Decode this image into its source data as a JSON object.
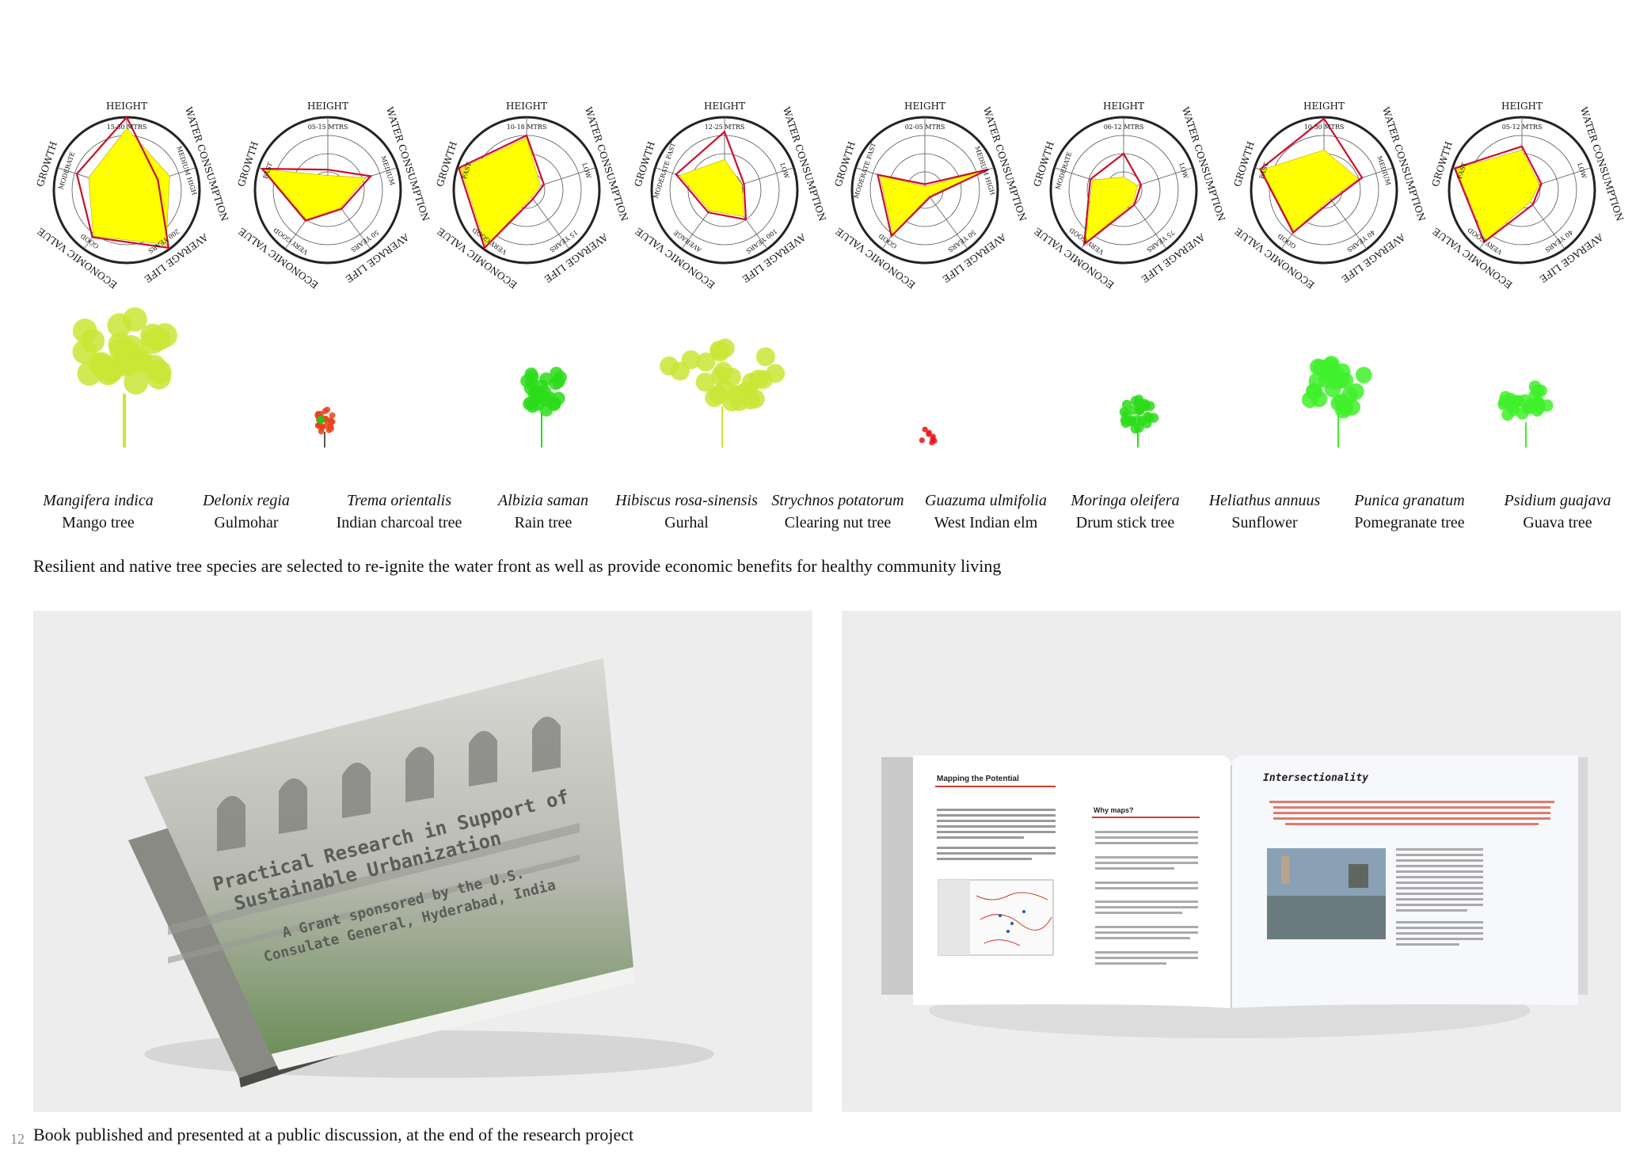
{
  "radar_axes": [
    "HEIGHT",
    "WATER CONSUMPTION",
    "AVERAGE LIFE",
    "ECONOMIC VALUE",
    "GROWTH"
  ],
  "radar_charts": [
    {
      "height": "15-30 MTRS",
      "water": "MEDIUM HIGH",
      "life": "200 YEARS",
      "economic": "GOOD",
      "growth": "MODERATE",
      "levels": [
        0.85,
        0.62,
        0.92,
        0.78,
        0.55
      ],
      "req": [
        1.0,
        0.45,
        0.98,
        0.8,
        0.72
      ]
    },
    {
      "height": "05-15 MTRS",
      "water": "MEDIUM",
      "life": "50 YEARS",
      "economic": "VERY GOOD",
      "growth": "FAST",
      "levels": [
        0.2,
        0.55,
        0.3,
        0.5,
        0.93
      ],
      "req": [
        0.28,
        0.62,
        0.32,
        0.52,
        0.95
      ]
    },
    {
      "height": "10-18 MTRS",
      "water": "LOW",
      "life": "15 YEARS",
      "economic": "VERY GOOD",
      "growth": "FAST",
      "levels": [
        0.72,
        0.2,
        0.12,
        0.95,
        0.95
      ],
      "req": [
        0.75,
        0.25,
        0.15,
        0.98,
        0.98
      ]
    },
    {
      "height": "12-25 MTRS",
      "water": "LOW",
      "life": "100 YEARS",
      "economic": "AVERAGE",
      "growth": "MODERATE FAST",
      "levels": [
        0.42,
        0.25,
        0.45,
        0.35,
        0.65
      ],
      "req": [
        0.8,
        0.28,
        0.5,
        0.38,
        0.7
      ]
    },
    {
      "height": "02-05 MTRS",
      "water": "MEDIUM HIGH",
      "life": "50 YEARS",
      "economic": "GOOD",
      "growth": "MODERATE FAST",
      "levels": [
        0.05,
        0.9,
        0.1,
        0.75,
        0.65
      ],
      "req": [
        0.08,
        0.92,
        0.12,
        0.78,
        0.68
      ]
    },
    {
      "height": "06-12 MTRS",
      "water": "LOW",
      "life": "75 YEARS",
      "economic": "VERY GOOD",
      "growth": "MODERATE",
      "levels": [
        0.18,
        0.2,
        0.22,
        0.9,
        0.45
      ],
      "req": [
        0.5,
        0.25,
        0.25,
        0.92,
        0.48
      ]
    },
    {
      "height": "10-30 MTRS",
      "water": "MEDIUM",
      "life": "40 YEARS",
      "economic": "GOOD",
      "growth": "FAST",
      "levels": [
        0.55,
        0.5,
        0.15,
        0.7,
        0.9
      ],
      "req": [
        0.98,
        0.55,
        0.18,
        0.72,
        0.92
      ]
    },
    {
      "height": "05-12 MTRS",
      "water": "LOW",
      "life": "40 YEARS",
      "economic": "VERY GOOD",
      "growth": "FAST",
      "levels": [
        0.55,
        0.25,
        0.2,
        0.85,
        0.95
      ],
      "req": [
        0.6,
        0.28,
        0.25,
        0.88,
        0.97
      ]
    }
  ],
  "species": [
    {
      "scientific": "Mangifera indica",
      "common": "Mango tree",
      "tree_color": "#c9e635"
    },
    {
      "scientific": "Delonix regia",
      "common": "Gulmohar",
      "tree_color": "#e8431a"
    },
    {
      "scientific": "Trema orientalis",
      "common": "Indian charcoal tree",
      "tree_color": ""
    },
    {
      "scientific": "Albizia saman",
      "common": "Rain tree",
      "tree_color": "#2bdc1a"
    },
    {
      "scientific": "Hibiscus rosa-sinensis",
      "common": "Gurhal",
      "tree_color": "#c9e635"
    },
    {
      "scientific": "Strychnos potatorum",
      "common": "Clearing nut tree",
      "tree_color": "#e8141a"
    },
    {
      "scientific": "Guazuma ulmifolia",
      "common": "West Indian elm",
      "tree_color": ""
    },
    {
      "scientific": "Moringa oleifera",
      "common": "Drum stick tree",
      "tree_color": "#2bdc1a"
    },
    {
      "scientific": "Heliathus annuus",
      "common": "Sunflower",
      "tree_color": "#3ff02a"
    },
    {
      "scientific": "Punica granatum",
      "common": "Pomegranate tree",
      "tree_color": ""
    },
    {
      "scientific": "Psidium guajava",
      "common": "Guava tree",
      "tree_color": "#3ff02a"
    }
  ],
  "caption_species": "Resilient and native tree species are selected to re-ignite the water front as well as provide economic benefits for healthy community living",
  "caption_book": "Book published and presented at a public discussion, at the end of the research project",
  "page_number": "12",
  "book_cover": {
    "title_line1": "Practical Research in Support of",
    "title_line2": "Sustainable Urbanization",
    "sub_line1": "A Grant sponsored by the U.S.",
    "sub_line2": "Consulate General, Hyderabad, India"
  },
  "book_spread": {
    "left_heading": "Mapping the Potential",
    "why_maps": "Why maps?",
    "right_heading": "Intersectionality"
  },
  "colors": {
    "fill": "#ffff00",
    "outline": "#c8102e",
    "ring": "#333333",
    "accent_red": "#d23c2c"
  }
}
